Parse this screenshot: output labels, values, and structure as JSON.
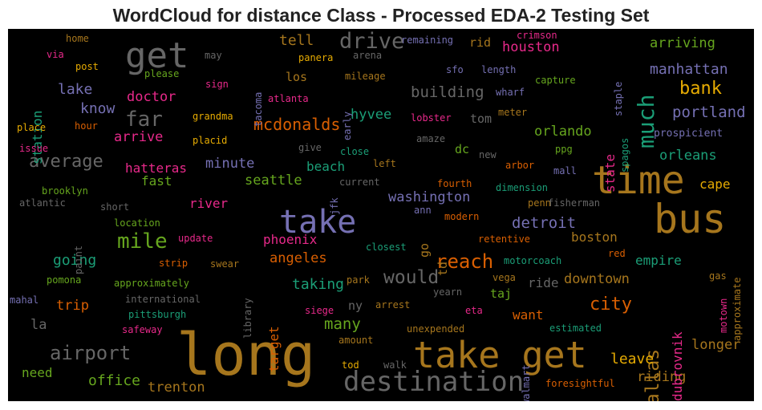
{
  "chart_data": {
    "type": "wordcloud",
    "title": "WordCloud for distance Class - Processed EDA-2 Testing Set",
    "background": "#000000",
    "palette": [
      "#b07a2a",
      "#7a6fb5",
      "#e0337a",
      "#1b9e77",
      "#d95f02",
      "#66a61e",
      "#666666",
      "#e6ab02"
    ],
    "words": [
      {
        "text": "long",
        "weight": 72,
        "color": "#a6761d"
      },
      {
        "text": "bus",
        "weight": 50,
        "color": "#a6761d"
      },
      {
        "text": "time",
        "weight": 48,
        "color": "#a6761d"
      },
      {
        "text": "take get",
        "weight": 45,
        "color": "#a6761d"
      },
      {
        "text": "get",
        "weight": 44,
        "color": "#666666"
      },
      {
        "text": "take",
        "weight": 40,
        "color": "#7570b3"
      },
      {
        "text": "destination",
        "weight": 34,
        "color": "#666666"
      },
      {
        "text": "much",
        "weight": 28,
        "color": "#1b9e77"
      },
      {
        "text": "drive",
        "weight": 27,
        "color": "#666666"
      },
      {
        "text": "far",
        "weight": 26,
        "color": "#666666"
      },
      {
        "text": "mile",
        "weight": 26,
        "color": "#66a61e"
      },
      {
        "text": "reach",
        "weight": 24,
        "color": "#d95f02"
      },
      {
        "text": "airport",
        "weight": 24,
        "color": "#666666"
      },
      {
        "text": "would",
        "weight": 23,
        "color": "#666666"
      },
      {
        "text": "dallas",
        "weight": 23,
        "color": "#a6761d"
      },
      {
        "text": "average",
        "weight": 22,
        "color": "#666666"
      },
      {
        "text": "bank",
        "weight": 22,
        "color": "#e6ab02"
      },
      {
        "text": "city",
        "weight": 22,
        "color": "#d95f02"
      },
      {
        "text": "mcdonalds",
        "weight": 20,
        "color": "#d95f02"
      },
      {
        "text": "portland",
        "weight": 19,
        "color": "#7570b3"
      },
      {
        "text": "building",
        "weight": 19,
        "color": "#666666"
      },
      {
        "text": "detroit",
        "weight": 19,
        "color": "#7570b3"
      },
      {
        "text": "many",
        "weight": 19,
        "color": "#66a61e"
      },
      {
        "text": "know",
        "weight": 18,
        "color": "#7570b3"
      },
      {
        "text": "tell",
        "weight": 18,
        "color": "#a6761d"
      },
      {
        "text": "lake",
        "weight": 18,
        "color": "#7570b3"
      },
      {
        "text": "taking",
        "weight": 18,
        "color": "#1b9e77"
      },
      {
        "text": "going",
        "weight": 18,
        "color": "#1b9e77"
      },
      {
        "text": "manhattan",
        "weight": 18,
        "color": "#7570b3"
      },
      {
        "text": "office",
        "weight": 18,
        "color": "#66a61e"
      },
      {
        "text": "leave",
        "weight": 18,
        "color": "#e6ab02"
      },
      {
        "text": "washington",
        "weight": 17,
        "color": "#7570b3"
      },
      {
        "text": "orlando",
        "weight": 17,
        "color": "#66a61e"
      },
      {
        "text": "seattle",
        "weight": 17,
        "color": "#66a61e"
      },
      {
        "text": "minute",
        "weight": 17,
        "color": "#7570b3"
      },
      {
        "text": "downtown",
        "weight": 17,
        "color": "#a6761d"
      },
      {
        "text": "houston",
        "weight": 17,
        "color": "#e7298a"
      },
      {
        "text": "arriving",
        "weight": 17,
        "color": "#66a61e"
      },
      {
        "text": "hyvee",
        "weight": 17,
        "color": "#1b9e77"
      },
      {
        "text": "orleans",
        "weight": 17,
        "color": "#1b9e77"
      },
      {
        "text": "longer",
        "weight": 17,
        "color": "#a6761d"
      },
      {
        "text": "doctor",
        "weight": 17,
        "color": "#e7298a"
      },
      {
        "text": "trip",
        "weight": 17,
        "color": "#d95f02"
      },
      {
        "text": "angeles",
        "weight": 17,
        "color": "#d95f02"
      },
      {
        "text": "la",
        "weight": 17,
        "color": "#666666"
      },
      {
        "text": "arrive",
        "weight": 17,
        "color": "#e7298a"
      },
      {
        "text": "riding",
        "weight": 17,
        "color": "#a6761d"
      },
      {
        "text": "trenton",
        "weight": 17,
        "color": "#a6761d"
      },
      {
        "text": "empire",
        "weight": 16,
        "color": "#1b9e77"
      },
      {
        "text": "ride",
        "weight": 16,
        "color": "#666666"
      },
      {
        "text": "boston",
        "weight": 16,
        "color": "#a6761d"
      },
      {
        "text": "phoenix",
        "weight": 16,
        "color": "#e7298a"
      },
      {
        "text": "cape",
        "weight": 16,
        "color": "#e6ab02"
      },
      {
        "text": "fast",
        "weight": 16,
        "color": "#66a61e"
      },
      {
        "text": "beach",
        "weight": 16,
        "color": "#1b9e77"
      },
      {
        "text": "hatteras",
        "weight": 16,
        "color": "#e7298a"
      },
      {
        "text": "river",
        "weight": 16,
        "color": "#e7298a"
      },
      {
        "text": "need",
        "weight": 16,
        "color": "#66a61e"
      },
      {
        "text": "want",
        "weight": 16,
        "color": "#d95f02"
      },
      {
        "text": "dubrovnik",
        "weight": 16,
        "color": "#e7298a"
      },
      {
        "text": "state",
        "weight": 16,
        "color": "#e7298a"
      },
      {
        "text": "station",
        "weight": 16,
        "color": "#1b9e77"
      },
      {
        "text": "target",
        "weight": 16,
        "color": "#d95f02"
      },
      {
        "text": "los",
        "weight": 15,
        "color": "#a6761d"
      },
      {
        "text": "tom",
        "weight": 15,
        "color": "#666666"
      },
      {
        "text": "dc",
        "weight": 15,
        "color": "#66a61e"
      },
      {
        "text": "taj",
        "weight": 15,
        "color": "#66a61e"
      },
      {
        "text": "ny",
        "weight": 15,
        "color": "#666666"
      },
      {
        "text": "go",
        "weight": 15,
        "color": "#a6761d"
      },
      {
        "text": "td",
        "weight": 15,
        "color": "#a6761d"
      },
      {
        "text": "rid",
        "weight": 15,
        "color": "#a6761d"
      },
      {
        "text": "prospicient",
        "weight": 13,
        "color": "#7570b3"
      },
      {
        "text": "spagos",
        "weight": 12,
        "color": "#1b9e77"
      },
      {
        "text": "meter",
        "weight": 12,
        "color": "#a6761d"
      },
      {
        "text": "capture",
        "weight": 12,
        "color": "#66a61e"
      },
      {
        "text": "wharf",
        "weight": 12,
        "color": "#7570b3"
      },
      {
        "text": "length",
        "weight": 12,
        "color": "#7570b3"
      },
      {
        "text": "sfo",
        "weight": 12,
        "color": "#7570b3"
      },
      {
        "text": "remaining",
        "weight": 12,
        "color": "#7570b3"
      },
      {
        "text": "crimson",
        "weight": 12,
        "color": "#e7298a"
      },
      {
        "text": "staple",
        "weight": 12,
        "color": "#7570b3"
      },
      {
        "text": "arena",
        "weight": 12,
        "color": "#666666"
      },
      {
        "text": "panera",
        "weight": 12,
        "color": "#e6ab02"
      },
      {
        "text": "mileage",
        "weight": 12,
        "color": "#a6761d"
      },
      {
        "text": "early",
        "weight": 12,
        "color": "#7570b3"
      },
      {
        "text": "atlanta",
        "weight": 12,
        "color": "#e7298a"
      },
      {
        "text": "tacoma",
        "weight": 12,
        "color": "#7570b3"
      },
      {
        "text": "may",
        "weight": 12,
        "color": "#666666"
      },
      {
        "text": "sign",
        "weight": 12,
        "color": "#e7298a"
      },
      {
        "text": "grandma",
        "weight": 12,
        "color": "#e6ab02"
      },
      {
        "text": "placid",
        "weight": 12,
        "color": "#e6ab02"
      },
      {
        "text": "give",
        "weight": 12,
        "color": "#666666"
      },
      {
        "text": "close",
        "weight": 12,
        "color": "#1b9e77"
      },
      {
        "text": "amaze",
        "weight": 12,
        "color": "#666666"
      },
      {
        "text": "lobster",
        "weight": 12,
        "color": "#e7298a"
      },
      {
        "text": "new",
        "weight": 12,
        "color": "#666666"
      },
      {
        "text": "ppg",
        "weight": 12,
        "color": "#66a61e"
      },
      {
        "text": "arbor",
        "weight": 12,
        "color": "#d95f02"
      },
      {
        "text": "mall",
        "weight": 12,
        "color": "#7570b3"
      },
      {
        "text": "left",
        "weight": 12,
        "color": "#a6761d"
      },
      {
        "text": "current",
        "weight": 12,
        "color": "#666666"
      },
      {
        "text": "fourth",
        "weight": 12,
        "color": "#d95f02"
      },
      {
        "text": "dimension",
        "weight": 12,
        "color": "#1b9e77"
      },
      {
        "text": "ann",
        "weight": 12,
        "color": "#7570b3"
      },
      {
        "text": "penn",
        "weight": 12,
        "color": "#a6761d"
      },
      {
        "text": "fisherman",
        "weight": 12,
        "color": "#666666"
      },
      {
        "text": "modern",
        "weight": 12,
        "color": "#d95f02"
      },
      {
        "text": "jfk",
        "weight": 12,
        "color": "#7570b3"
      },
      {
        "text": "short",
        "weight": 12,
        "color": "#666666"
      },
      {
        "text": "atlantic",
        "weight": 12,
        "color": "#666666"
      },
      {
        "text": "brooklyn",
        "weight": 12,
        "color": "#66a61e"
      },
      {
        "text": "issue",
        "weight": 12,
        "color": "#e7298a"
      },
      {
        "text": "place",
        "weight": 12,
        "color": "#e6ab02"
      },
      {
        "text": "hour",
        "weight": 12,
        "color": "#d95f02"
      },
      {
        "text": "please",
        "weight": 12,
        "color": "#66a61e"
      },
      {
        "text": "post",
        "weight": 12,
        "color": "#e6ab02"
      },
      {
        "text": "via",
        "weight": 12,
        "color": "#e7298a"
      },
      {
        "text": "home",
        "weight": 12,
        "color": "#a6761d"
      },
      {
        "text": "location",
        "weight": 12,
        "color": "#66a61e"
      },
      {
        "text": "paint",
        "weight": 12,
        "color": "#666666"
      },
      {
        "text": "update",
        "weight": 12,
        "color": "#e7298a"
      },
      {
        "text": "strip",
        "weight": 12,
        "color": "#d95f02"
      },
      {
        "text": "swear",
        "weight": 12,
        "color": "#a6761d"
      },
      {
        "text": "closest",
        "weight": 12,
        "color": "#1b9e77"
      },
      {
        "text": "retentive",
        "weight": 12,
        "color": "#d95f02"
      },
      {
        "text": "motorcoach",
        "weight": 12,
        "color": "#1b9e77"
      },
      {
        "text": "red",
        "weight": 12,
        "color": "#d95f02"
      },
      {
        "text": "approximate",
        "weight": 12,
        "color": "#a6761d"
      },
      {
        "text": "gas",
        "weight": 12,
        "color": "#a6761d"
      },
      {
        "text": "motown",
        "weight": 12,
        "color": "#e7298a"
      },
      {
        "text": "library",
        "weight": 12,
        "color": "#666666"
      },
      {
        "text": "pomona",
        "weight": 12,
        "color": "#66a61e"
      },
      {
        "text": "approximately",
        "weight": 12,
        "color": "#66a61e"
      },
      {
        "text": "park",
        "weight": 12,
        "color": "#a6761d"
      },
      {
        "text": "vega",
        "weight": 12,
        "color": "#a6761d"
      },
      {
        "text": "mahal",
        "weight": 12,
        "color": "#7570b3"
      },
      {
        "text": "international",
        "weight": 12,
        "color": "#666666"
      },
      {
        "text": "pittsburgh",
        "weight": 12,
        "color": "#1b9e77"
      },
      {
        "text": "yearn",
        "weight": 12,
        "color": "#666666"
      },
      {
        "text": "arrest",
        "weight": 12,
        "color": "#a6761d"
      },
      {
        "text": "siege",
        "weight": 12,
        "color": "#e7298a"
      },
      {
        "text": "eta",
        "weight": 12,
        "color": "#e7298a"
      },
      {
        "text": "safeway",
        "weight": 12,
        "color": "#e7298a"
      },
      {
        "text": "unexpended",
        "weight": 12,
        "color": "#a6761d"
      },
      {
        "text": "estimated",
        "weight": 12,
        "color": "#1b9e77"
      },
      {
        "text": "amount",
        "weight": 12,
        "color": "#a6761d"
      },
      {
        "text": "walmart",
        "weight": 12,
        "color": "#7570b3"
      },
      {
        "text": "tod",
        "weight": 12,
        "color": "#e6ab02"
      },
      {
        "text": "walk",
        "weight": 12,
        "color": "#666666"
      },
      {
        "text": "foresightful",
        "weight": 12,
        "color": "#d95f02"
      }
    ]
  }
}
